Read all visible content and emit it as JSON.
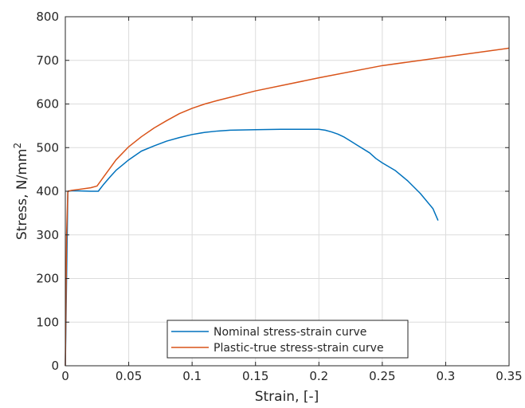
{
  "chart_data": {
    "type": "line",
    "xlabel": "Strain, [-]",
    "ylabel_main": "Stress, N/mm",
    "ylabel_sup": "2",
    "xlim": [
      0,
      0.35
    ],
    "ylim": [
      0,
      800
    ],
    "xticks": [
      0,
      0.05,
      0.1,
      0.15,
      0.2,
      0.25,
      0.3,
      0.35
    ],
    "xtick_labels": [
      "0",
      "0.05",
      "0.1",
      "0.15",
      "0.2",
      "0.25",
      "0.3",
      "0.35"
    ],
    "yticks": [
      0,
      100,
      200,
      300,
      400,
      500,
      600,
      700,
      800
    ],
    "ytick_labels": [
      "0",
      "100",
      "200",
      "300",
      "400",
      "500",
      "600",
      "700",
      "800"
    ],
    "grid": true,
    "legend_position": "bottom-center",
    "series": [
      {
        "name": "Nominal stress-strain curve",
        "color": "#0072BD",
        "x": [
          0,
          0.001,
          0.002,
          0.005,
          0.01,
          0.02,
          0.026,
          0.03,
          0.035,
          0.04,
          0.045,
          0.05,
          0.055,
          0.06,
          0.07,
          0.08,
          0.09,
          0.1,
          0.11,
          0.12,
          0.13,
          0.15,
          0.17,
          0.19,
          0.2,
          0.205,
          0.21,
          0.215,
          0.22,
          0.225,
          0.23,
          0.24,
          0.245,
          0.25,
          0.26,
          0.27,
          0.28,
          0.29,
          0.294
        ],
        "y": [
          0,
          200,
          400,
          401,
          401,
          400,
          400,
          415,
          432,
          448,
          460,
          472,
          482,
          492,
          504,
          515,
          523,
          530,
          535,
          538,
          540,
          541,
          542,
          542,
          542,
          540,
          536,
          531,
          524,
          515,
          506,
          488,
          475,
          465,
          448,
          424,
          395,
          360,
          333
        ]
      },
      {
        "name": "Plastic-true stress-strain curve",
        "color": "#D95319",
        "x": [
          0,
          0.0005,
          0.001,
          0.002,
          0.005,
          0.01,
          0.015,
          0.02,
          0.025,
          0.03,
          0.035,
          0.04,
          0.05,
          0.06,
          0.07,
          0.08,
          0.09,
          0.1,
          0.11,
          0.12,
          0.15,
          0.2,
          0.25,
          0.3,
          0.35
        ],
        "y": [
          0,
          150,
          300,
          400,
          402,
          404,
          406,
          408,
          412,
          432,
          452,
          472,
          502,
          525,
          545,
          562,
          578,
          590,
          600,
          608,
          630,
          660,
          688,
          708,
          728
        ]
      }
    ]
  }
}
